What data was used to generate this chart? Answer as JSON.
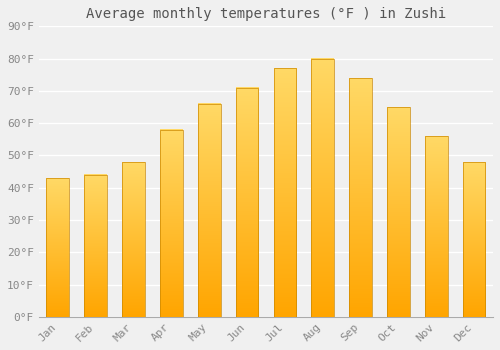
{
  "title": "Average monthly temperatures (°F ) in Zushi",
  "months": [
    "Jan",
    "Feb",
    "Mar",
    "Apr",
    "May",
    "Jun",
    "Jul",
    "Aug",
    "Sep",
    "Oct",
    "Nov",
    "Dec"
  ],
  "values": [
    43,
    44,
    48,
    58,
    66,
    71,
    77,
    80,
    74,
    65,
    56,
    48
  ],
  "bar_color_bottom": "#FFA500",
  "bar_color_top": "#FFD966",
  "bar_outline_color": "#CC8800",
  "ylim": [
    0,
    90
  ],
  "yticks": [
    0,
    10,
    20,
    30,
    40,
    50,
    60,
    70,
    80,
    90
  ],
  "ytick_labels": [
    "0°F",
    "10°F",
    "20°F",
    "30°F",
    "40°F",
    "50°F",
    "60°F",
    "70°F",
    "80°F",
    "90°F"
  ],
  "background_color": "#F0F0F0",
  "grid_color": "#FFFFFF",
  "title_fontsize": 10,
  "tick_fontsize": 8,
  "tick_color": "#888888",
  "font_family": "monospace",
  "bar_width": 0.6
}
